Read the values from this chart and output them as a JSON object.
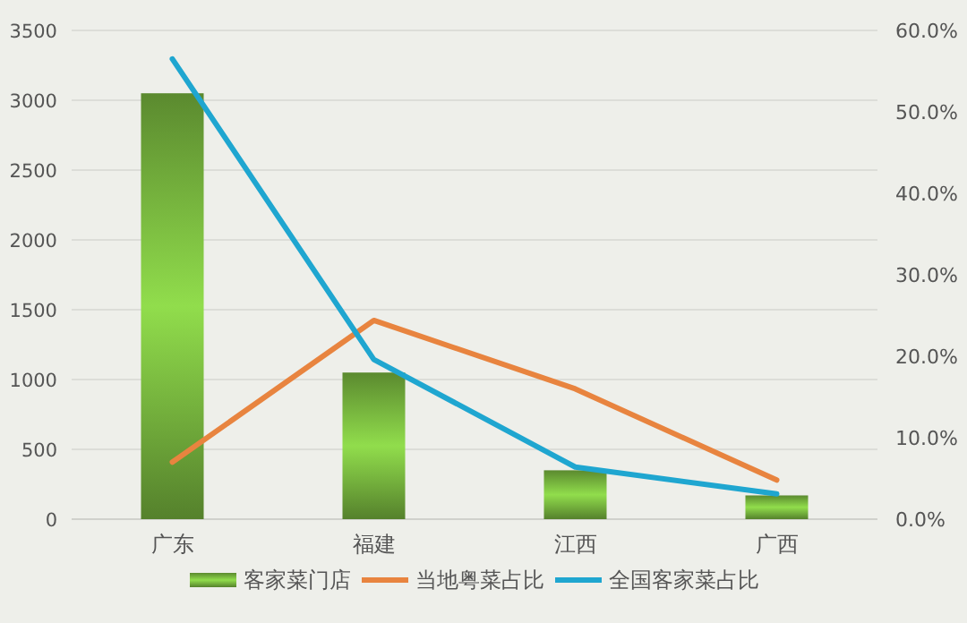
{
  "chart_data": {
    "type": "bar",
    "categories": [
      "广东",
      "福建",
      "江西",
      "广西"
    ],
    "series": [
      {
        "name": "客家菜门店",
        "color": "#79b83f",
        "values": [
          3050,
          1050,
          350,
          170
        ]
      },
      {
        "name": "当地粤菜占比",
        "type": "line",
        "axis": "y2",
        "color": "#e8843f",
        "values": [
          7.0,
          24.4,
          16.0,
          4.8
        ]
      },
      {
        "name": "全国客家菜占比",
        "type": "line",
        "axis": "y2",
        "color": "#1fa6d0",
        "values": [
          56.5,
          19.6,
          6.4,
          3.1
        ]
      }
    ],
    "ylim": [
      0,
      3500
    ],
    "yticks": [
      0,
      500,
      1000,
      1500,
      2000,
      2500,
      3000,
      3500
    ],
    "y2lim": [
      0,
      60
    ],
    "y2ticks": [
      {
        "value": 0,
        "label": "0.0%"
      },
      {
        "value": 10,
        "label": "10.0%"
      },
      {
        "value": 20,
        "label": "20.0%"
      },
      {
        "value": 30,
        "label": "30.0%"
      },
      {
        "value": 40,
        "label": "40.0%"
      },
      {
        "value": 50,
        "label": "50.0%"
      },
      {
        "value": 60,
        "label": "60.0%"
      }
    ],
    "grid": "y",
    "legend": "bottom"
  }
}
